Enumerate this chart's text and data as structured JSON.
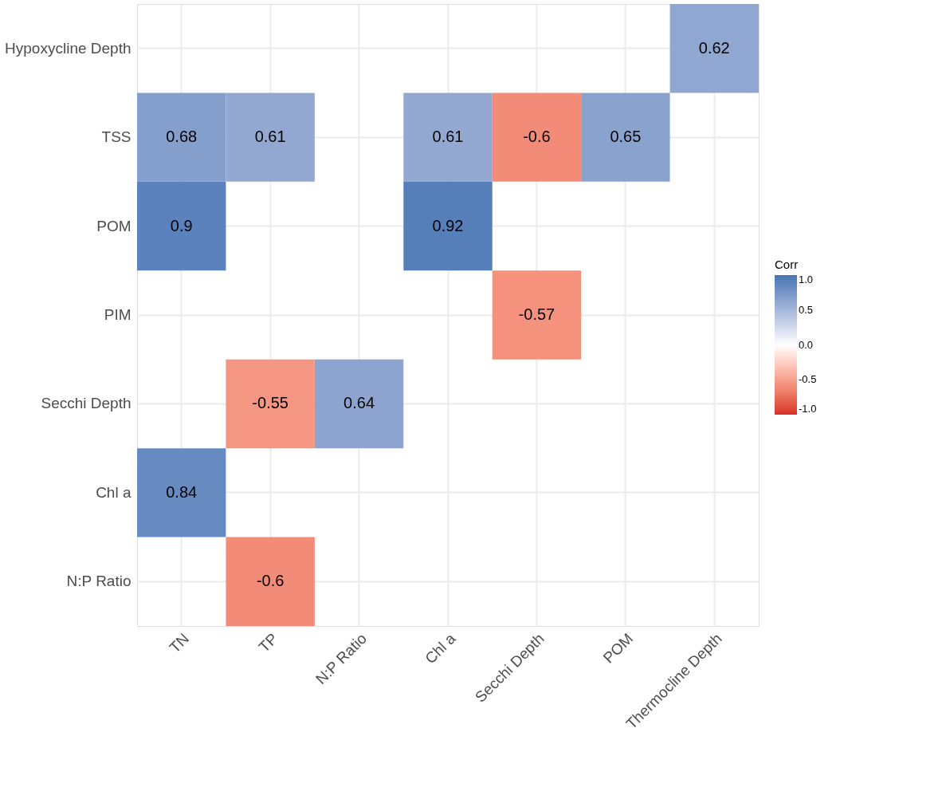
{
  "chart_data": {
    "type": "heatmap",
    "categories": [
      "TN",
      "TP",
      "N:P Ratio",
      "Chl a",
      "Secchi Depth",
      "POM",
      "Thermocline Depth"
    ],
    "y_categories": [
      "Hypoxycline Depth",
      "TSS",
      "POM",
      "PIM",
      "Secchi Depth",
      "Chl a",
      "N:P Ratio"
    ],
    "cells": [
      [
        null,
        null,
        null,
        null,
        null,
        null,
        0.62
      ],
      [
        0.68,
        0.61,
        null,
        0.61,
        -0.6,
        0.65,
        null
      ],
      [
        0.9,
        null,
        null,
        0.92,
        null,
        null,
        null
      ],
      [
        null,
        null,
        null,
        null,
        -0.57,
        null,
        null
      ],
      [
        null,
        -0.55,
        0.64,
        null,
        null,
        null,
        null
      ],
      [
        0.84,
        null,
        null,
        null,
        null,
        null,
        null
      ],
      [
        null,
        -0.6,
        null,
        null,
        null,
        null,
        null
      ]
    ],
    "clabel": "Corr",
    "clim": [
      -1,
      1
    ],
    "cticks": [
      {
        "value": -1,
        "label": "-1.0"
      },
      {
        "value": -0.5,
        "label": "-0.5"
      },
      {
        "value": 0,
        "label": "0.0"
      },
      {
        "value": 0.5,
        "label": "0.5"
      },
      {
        "value": 1,
        "label": "1.0"
      }
    ],
    "data_labels": true,
    "grid": true
  }
}
